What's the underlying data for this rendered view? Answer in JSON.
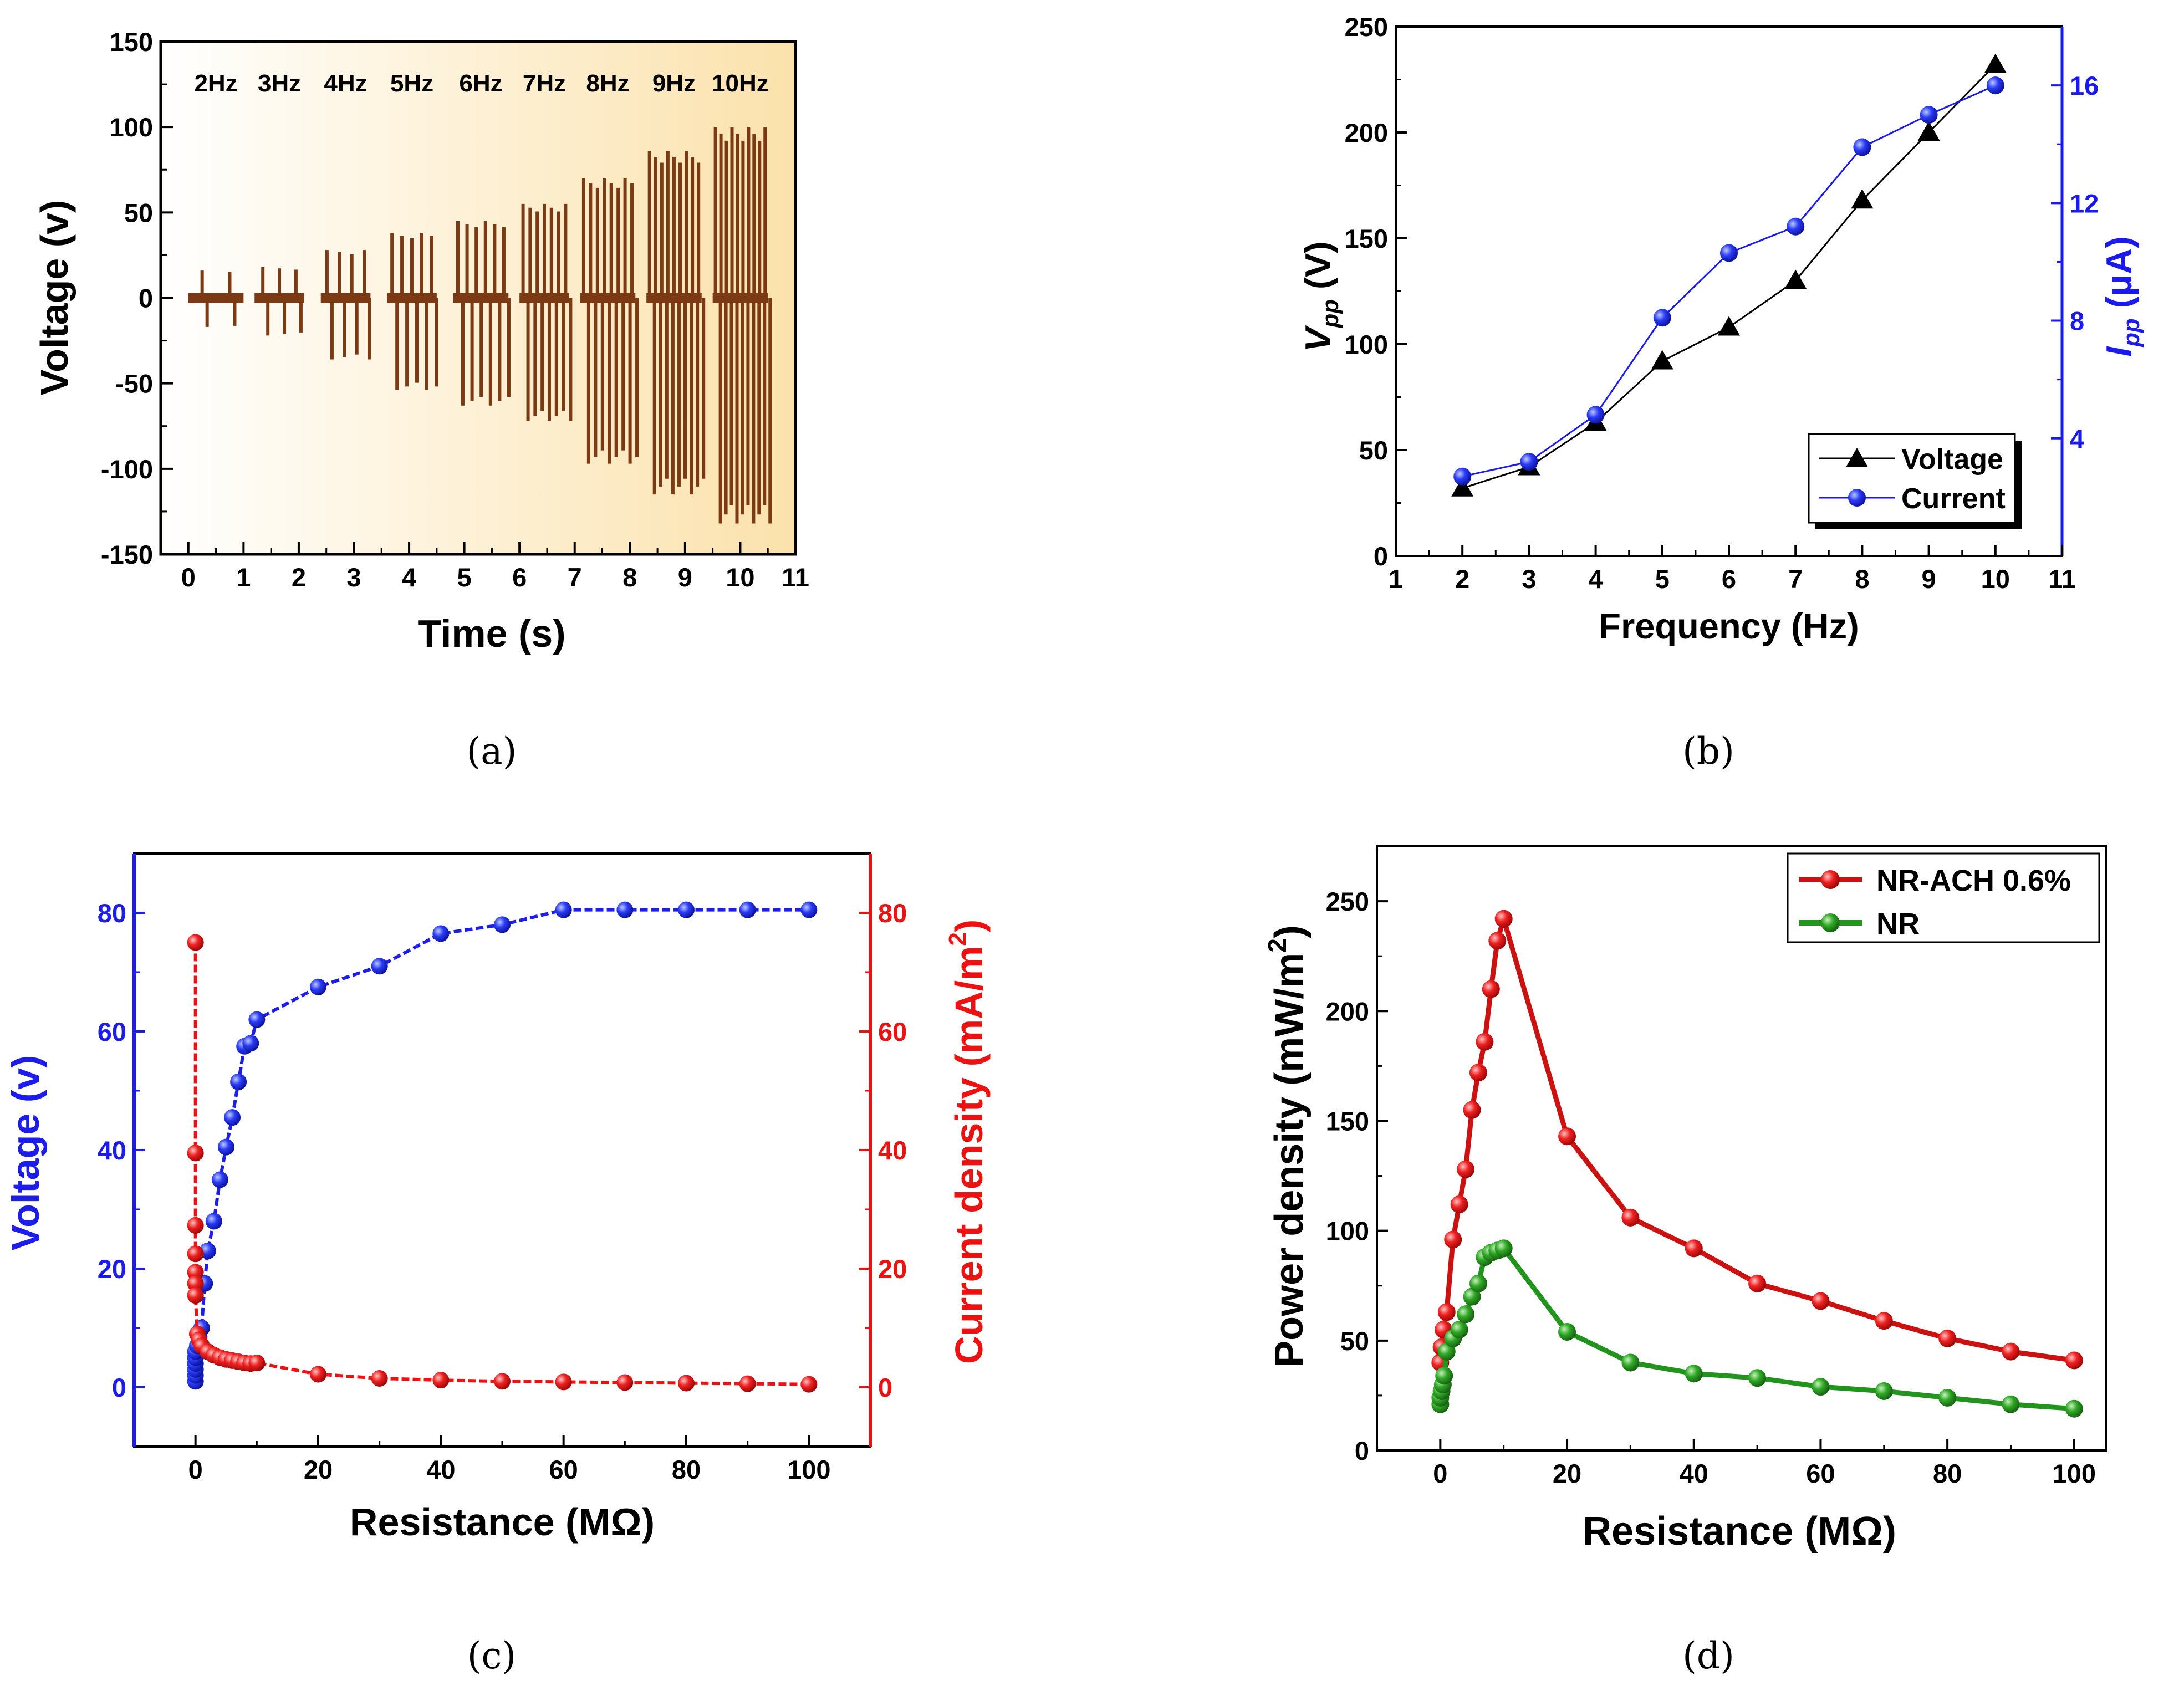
{
  "chart_data": [
    {
      "panel": "a",
      "caption": "(a)",
      "type": "line",
      "xlabel": "Time (s)",
      "ylabel": "Voltage (v)",
      "xlim": [
        -0.5,
        11
      ],
      "ylim": [
        -150,
        150
      ],
      "xticks": [
        0,
        1,
        2,
        3,
        4,
        5,
        6,
        7,
        8,
        9,
        10,
        11
      ],
      "yticks": [
        -150,
        -100,
        -50,
        0,
        50,
        100,
        150
      ],
      "line_color": "#7b3a14",
      "background_gradient": [
        "#ffffff",
        "#fbe2ac"
      ],
      "groups": [
        {
          "label": "2Hz",
          "start": 0.0,
          "end": 1.0,
          "pulses": 2,
          "max": 16,
          "min": -17
        },
        {
          "label": "3Hz",
          "start": 1.2,
          "end": 2.1,
          "pulses": 3,
          "max": 18,
          "min": -22
        },
        {
          "label": "4Hz",
          "start": 2.4,
          "end": 3.3,
          "pulses": 4,
          "max": 28,
          "min": -36
        },
        {
          "label": "5Hz",
          "start": 3.6,
          "end": 4.5,
          "pulses": 5,
          "max": 38,
          "min": -54
        },
        {
          "label": "6Hz",
          "start": 4.8,
          "end": 5.8,
          "pulses": 6,
          "max": 45,
          "min": -63
        },
        {
          "label": "7Hz",
          "start": 6.0,
          "end": 6.9,
          "pulses": 7,
          "max": 55,
          "min": -72
        },
        {
          "label": "8Hz",
          "start": 7.1,
          "end": 8.1,
          "pulses": 8,
          "max": 70,
          "min": -97
        },
        {
          "label": "9Hz",
          "start": 8.3,
          "end": 9.3,
          "pulses": 9,
          "max": 86,
          "min": -115
        },
        {
          "label": "10Hz",
          "start": 9.5,
          "end": 10.5,
          "pulses": 10,
          "max": 100,
          "min": -132
        }
      ]
    },
    {
      "panel": "b",
      "caption": "(b)",
      "type": "line",
      "xlabel": "Frequency (Hz)",
      "ylabel": {
        "main": "V",
        "sub": "pp",
        "unit": " (V)"
      },
      "y2label": {
        "main": "I",
        "sub": "pp",
        "unit": " (μA)"
      },
      "xlim": [
        1,
        11
      ],
      "ylim": [
        0,
        250
      ],
      "y2lim": [
        0,
        18
      ],
      "xticks": [
        1,
        2,
        3,
        4,
        5,
        6,
        7,
        8,
        9,
        10,
        11
      ],
      "yticks": [
        0,
        50,
        100,
        150,
        200,
        250
      ],
      "y2ticks": [
        4,
        8,
        12,
        16
      ],
      "x": [
        2,
        3,
        4,
        5,
        6,
        7,
        8,
        9,
        10
      ],
      "series": [
        {
          "name": "Voltage",
          "axis": "left",
          "color": "#000000",
          "marker": "triangle",
          "values": [
            32,
            42,
            63,
            92,
            108,
            130,
            168,
            200,
            232
          ]
        },
        {
          "name": "Current",
          "axis": "right",
          "color": "#1a1aee",
          "marker": "circle",
          "values": [
            2.7,
            3.2,
            4.8,
            8.1,
            10.3,
            11.2,
            13.9,
            15.0,
            16.0
          ]
        }
      ],
      "legend_position": "bottom-right"
    },
    {
      "panel": "c",
      "caption": "(c)",
      "type": "scatter",
      "xlabel": "Resistance (MΩ)",
      "ylabel": "Voltage (v)",
      "y2label": {
        "main": "Current density (mA/m",
        "sup": "2",
        "tail": ")"
      },
      "xlim": [
        -10,
        110
      ],
      "ylim": [
        -10,
        90
      ],
      "y2lim": [
        -10,
        90
      ],
      "xticks": [
        0,
        20,
        40,
        60,
        80,
        100
      ],
      "yticks": [
        0,
        20,
        40,
        60,
        80
      ],
      "y2ticks": [
        0,
        20,
        40,
        60,
        80
      ],
      "series": [
        {
          "name": "Voltage",
          "axis": "left",
          "color": "#1c1ced",
          "x": [
            0,
            0,
            0,
            0,
            0,
            0,
            0.3,
            0.6,
            1,
            1.5,
            2,
            3,
            4,
            5,
            6,
            7,
            8,
            9,
            10,
            20,
            30,
            40,
            50,
            60,
            70,
            80,
            90,
            100
          ],
          "y": [
            1,
            2,
            3,
            4,
            5,
            6,
            7,
            8.5,
            10,
            17.5,
            23,
            28,
            35,
            40.5,
            45.5,
            51.5,
            57.5,
            58,
            62,
            67.5,
            71,
            76.5,
            78,
            80.5,
            80.5,
            80.5,
            80.5,
            80.5
          ]
        },
        {
          "name": "Current density",
          "axis": "right",
          "color": "#ee1111",
          "x": [
            0,
            0,
            0,
            0,
            0,
            0,
            0,
            0.3,
            0.6,
            1,
            2,
            3,
            4,
            5,
            6,
            7,
            8,
            9,
            10,
            20,
            30,
            40,
            50,
            60,
            70,
            80,
            90,
            100
          ],
          "y": [
            75,
            39.5,
            27.3,
            22.5,
            19.4,
            17.5,
            15.5,
            9,
            8,
            7,
            6,
            5.4,
            5,
            4.7,
            4.5,
            4.3,
            4.1,
            4.0,
            4.1,
            2.2,
            1.5,
            1.2,
            1.0,
            0.9,
            0.8,
            0.7,
            0.6,
            0.5
          ]
        }
      ]
    },
    {
      "panel": "d",
      "caption": "(d)",
      "type": "line",
      "xlabel": "Resistance (MΩ)",
      "ylabel": {
        "main": "Power density (mW/m",
        "sup": "2",
        "tail": ")"
      },
      "xlim": [
        -10,
        105
      ],
      "ylim": [
        0,
        275
      ],
      "xticks": [
        0,
        20,
        40,
        60,
        80,
        100
      ],
      "yticks": [
        0,
        50,
        100,
        150,
        200,
        250
      ],
      "legend_position": "top-right",
      "series": [
        {
          "name": "NR-ACH 0.6%",
          "color": "#cc1111",
          "x": [
            0,
            0.2,
            0.5,
            1,
            2,
            3,
            4,
            5,
            6,
            7,
            8,
            9,
            10,
            20,
            30,
            40,
            50,
            60,
            70,
            80,
            90,
            100
          ],
          "y": [
            40,
            47,
            55,
            63,
            96,
            112,
            128,
            155,
            172,
            186,
            210,
            232,
            242,
            143,
            106,
            92,
            76,
            68,
            59,
            51,
            45,
            41
          ]
        },
        {
          "name": "NR",
          "color": "#22941e",
          "x": [
            0,
            0,
            0.2,
            0.4,
            0.6,
            1,
            2,
            3,
            4,
            5,
            6,
            7,
            8,
            9,
            10,
            20,
            30,
            40,
            50,
            60,
            70,
            80,
            90,
            100
          ],
          "y": [
            21,
            24,
            27,
            30,
            34,
            45,
            51,
            55,
            62,
            70,
            76,
            88,
            90,
            91,
            92,
            54,
            40,
            35,
            33,
            29,
            27,
            24,
            21,
            19
          ]
        }
      ]
    }
  ]
}
